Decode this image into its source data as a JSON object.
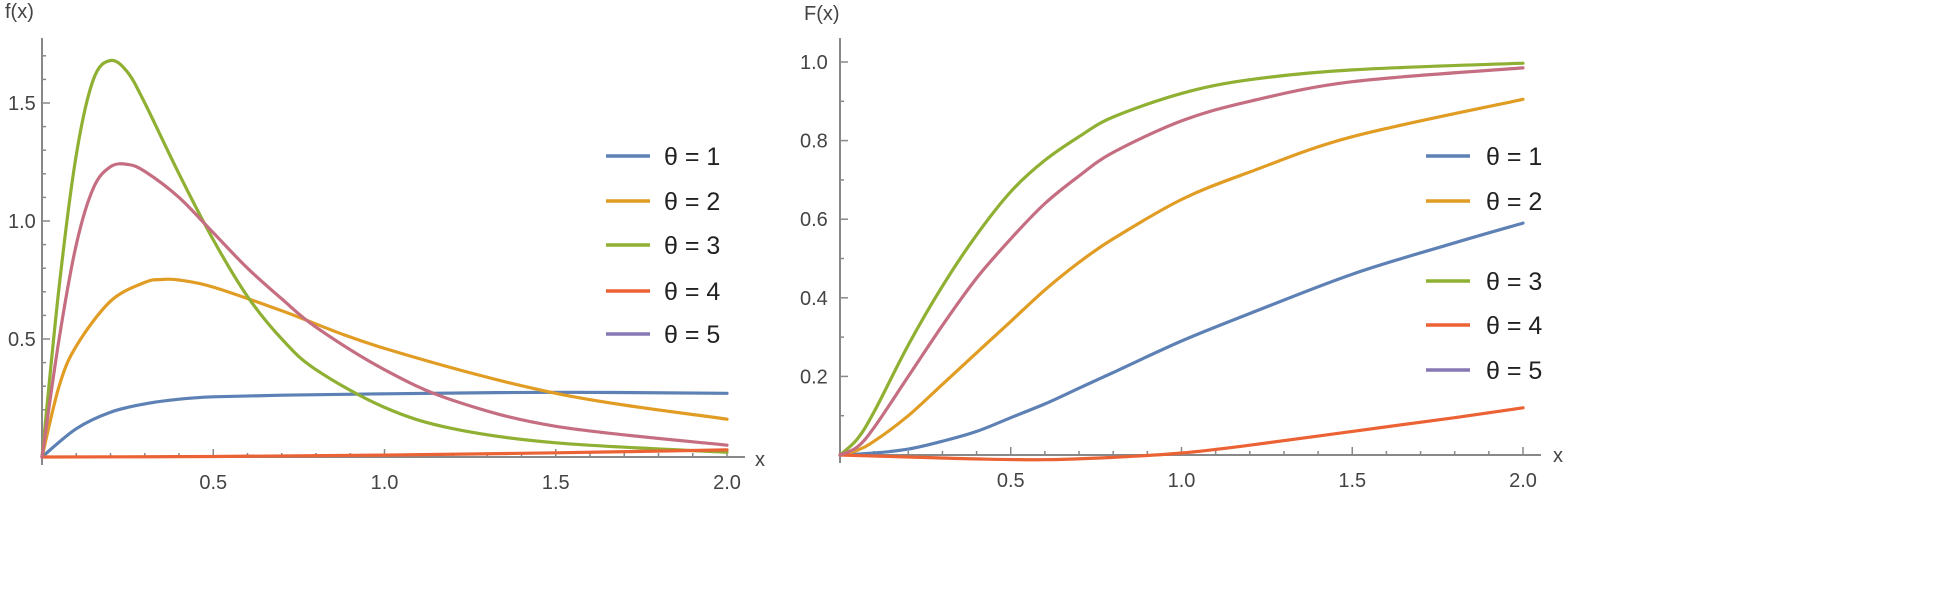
{
  "chart_data": [
    {
      "type": "line",
      "title": "",
      "ylabel": "f(x)",
      "xlabel": "x",
      "xlim": [
        0,
        2.0
      ],
      "ylim": [
        0,
        1.75
      ],
      "xticks": [
        "0.5",
        "1.0",
        "1.5",
        "2.0"
      ],
      "yticks": [
        "0.5",
        "1.0",
        "1.5"
      ],
      "legend_position": "right",
      "series": [
        {
          "name": "θ = 1",
          "color": "#5e81b5",
          "x": [
            0,
            0.1,
            0.2,
            0.3,
            0.4,
            0.5,
            0.7,
            1.0,
            1.5,
            2.0
          ],
          "y": [
            0,
            0.12,
            0.19,
            0.225,
            0.245,
            0.255,
            0.262,
            0.268,
            0.274,
            0.27
          ]
        },
        {
          "name": "θ = 2",
          "color": "#e19c24",
          "x": [
            0,
            0.05,
            0.1,
            0.2,
            0.3,
            0.35,
            0.4,
            0.5,
            0.7,
            1.0,
            1.5,
            2.0
          ],
          "y": [
            0,
            0.3,
            0.47,
            0.66,
            0.74,
            0.752,
            0.75,
            0.72,
            0.62,
            0.46,
            0.27,
            0.16
          ]
        },
        {
          "name": "θ = 3",
          "color": "#8fb032",
          "x": [
            0,
            0.05,
            0.1,
            0.15,
            0.2,
            0.25,
            0.3,
            0.4,
            0.5,
            0.6,
            0.7,
            0.8,
            1.0,
            1.2,
            1.5,
            2.0
          ],
          "y": [
            0,
            0.72,
            1.28,
            1.6,
            1.68,
            1.63,
            1.5,
            1.2,
            0.92,
            0.68,
            0.5,
            0.37,
            0.21,
            0.12,
            0.06,
            0.02
          ]
        },
        {
          "name": "θ = 4",
          "color": "#eb6235",
          "x": [
            0,
            0.5,
            1.0,
            1.5,
            2.0
          ],
          "y": [
            0,
            0.002,
            0.008,
            0.018,
            0.03
          ]
        },
        {
          "name": "θ = 5",
          "color": "#8778b3",
          "x": [],
          "y": []
        },
        {
          "name": "",
          "color": "#c56e82",
          "x": [
            0,
            0.05,
            0.1,
            0.15,
            0.2,
            0.25,
            0.3,
            0.4,
            0.5,
            0.6,
            0.7,
            0.8,
            1.0,
            1.2,
            1.5,
            2.0
          ],
          "y": [
            0,
            0.5,
            0.9,
            1.14,
            1.23,
            1.24,
            1.21,
            1.1,
            0.95,
            0.8,
            0.67,
            0.55,
            0.37,
            0.24,
            0.13,
            0.05
          ]
        }
      ]
    },
    {
      "type": "line",
      "title": "",
      "ylabel": "F(x)",
      "xlabel": "x",
      "xlim": [
        0,
        2.0
      ],
      "ylim": [
        0,
        1.05
      ],
      "xticks": [
        "0.5",
        "1.0",
        "1.5",
        "2.0"
      ],
      "yticks": [
        "0.2",
        "0.4",
        "0.6",
        "0.8",
        "1.0"
      ],
      "legend_position": "right",
      "series": [
        {
          "name": "θ = 1",
          "color": "#5e81b5",
          "x": [
            0,
            0.1,
            0.2,
            0.3,
            0.4,
            0.5,
            0.6,
            0.7,
            0.8,
            1.0,
            1.2,
            1.5,
            1.8,
            2.0
          ],
          "y": [
            0,
            0.005,
            0.015,
            0.035,
            0.06,
            0.095,
            0.13,
            0.17,
            0.21,
            0.29,
            0.36,
            0.46,
            0.54,
            0.59
          ]
        },
        {
          "name": "θ = 2",
          "color": "#e19c24",
          "x": [
            0,
            0.05,
            0.1,
            0.2,
            0.3,
            0.4,
            0.5,
            0.6,
            0.7,
            0.8,
            1.0,
            1.2,
            1.5,
            2.0
          ],
          "y": [
            0,
            0.012,
            0.035,
            0.1,
            0.18,
            0.26,
            0.34,
            0.42,
            0.49,
            0.55,
            0.65,
            0.72,
            0.81,
            0.905
          ]
        },
        {
          "name": "θ = 3",
          "color": "#8fb032",
          "x": [
            0,
            0.05,
            0.1,
            0.2,
            0.3,
            0.4,
            0.5,
            0.6,
            0.7,
            0.8,
            1.0,
            1.2,
            1.5,
            2.0
          ],
          "y": [
            0,
            0.04,
            0.11,
            0.28,
            0.43,
            0.56,
            0.67,
            0.75,
            0.81,
            0.86,
            0.92,
            0.955,
            0.98,
            0.997
          ]
        },
        {
          "name": "θ = 4",
          "color": "#eb6235",
          "x": [
            0,
            0.2,
            0.4,
            0.6,
            0.8,
            1.0,
            1.2,
            1.5,
            1.8,
            2.0
          ],
          "y": [
            0,
            -0.005,
            -0.01,
            -0.012,
            -0.006,
            0.005,
            0.025,
            0.06,
            0.095,
            0.12
          ]
        },
        {
          "name": "θ = 5",
          "color": "#8778b3",
          "x": [],
          "y": []
        },
        {
          "name": "",
          "color": "#c56e82",
          "x": [
            0,
            0.05,
            0.1,
            0.2,
            0.3,
            0.4,
            0.5,
            0.6,
            0.7,
            0.8,
            1.0,
            1.2,
            1.5,
            2.0
          ],
          "y": [
            0,
            0.02,
            0.07,
            0.2,
            0.33,
            0.45,
            0.55,
            0.64,
            0.71,
            0.77,
            0.85,
            0.9,
            0.95,
            0.985
          ]
        }
      ]
    }
  ]
}
